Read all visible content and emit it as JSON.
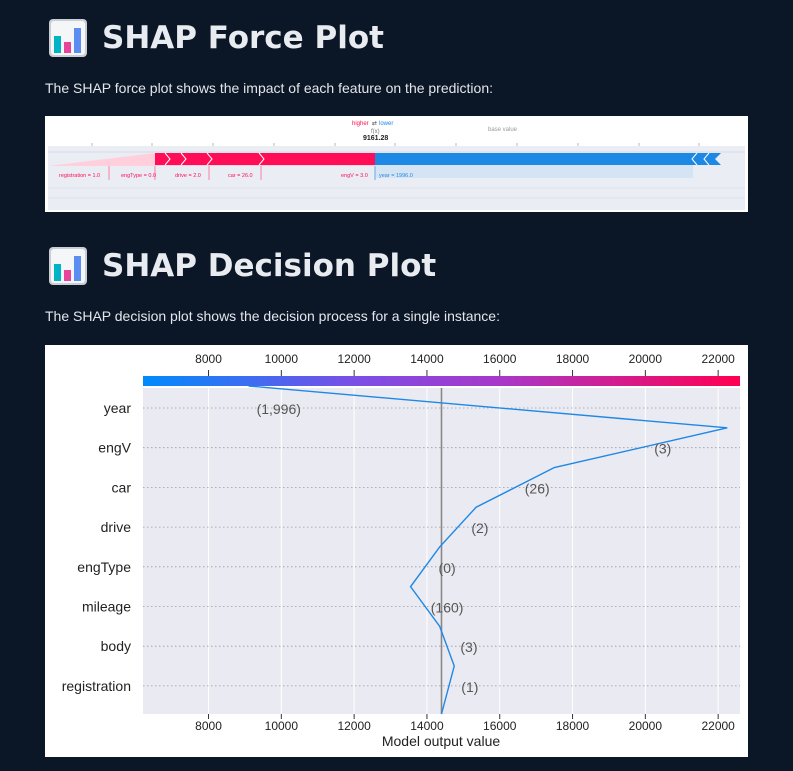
{
  "force_section": {
    "title": "SHAP Force Plot",
    "description": "The SHAP force plot shows the impact of each feature on the prediction:",
    "icon": "bar-chart-icon",
    "legend_higher": "higher",
    "legend_arrows": "⇄",
    "legend_lower": "lower",
    "fx_label": "f(x)",
    "fx_value": "9161.28",
    "base_value_label": "base value",
    "features_push_higher": [
      {
        "label": "registration = 1.0"
      },
      {
        "label": "engType = 0.0"
      },
      {
        "label": "drive = 2.0"
      },
      {
        "label": "car = 26.0"
      },
      {
        "label": "engV = 3.0"
      }
    ],
    "features_push_lower": [
      {
        "label": "year = 1996.0"
      }
    ],
    "colors": {
      "higher": "#ff0d57",
      "lower": "#1e88e5"
    }
  },
  "decision_section": {
    "title": "SHAP Decision Plot",
    "description": "The SHAP decision plot shows the decision process for a single instance:",
    "icon": "bar-chart-icon"
  },
  "chart_data": {
    "type": "line",
    "xlabel": "Model output value",
    "xlim": [
      6200,
      22600
    ],
    "x_ticks": [
      8000,
      10000,
      12000,
      14000,
      16000,
      18000,
      20000,
      22000
    ],
    "base_value": 14400,
    "features": [
      "year",
      "engV",
      "car",
      "drive",
      "engType",
      "mileage",
      "body",
      "registration"
    ],
    "feature_values": [
      "(1,996)",
      "(3)",
      "(26)",
      "(2)",
      "(0)",
      "(160)",
      "(3)",
      "(1)"
    ],
    "path": [
      9100,
      22250,
      17500,
      15350,
      14350,
      13550,
      14350,
      14750,
      14400
    ],
    "colors": {
      "line": "#1e88e5",
      "colorbar_low": "#008bfb",
      "colorbar_high": "#ff0052",
      "base_line": "#888888"
    }
  }
}
